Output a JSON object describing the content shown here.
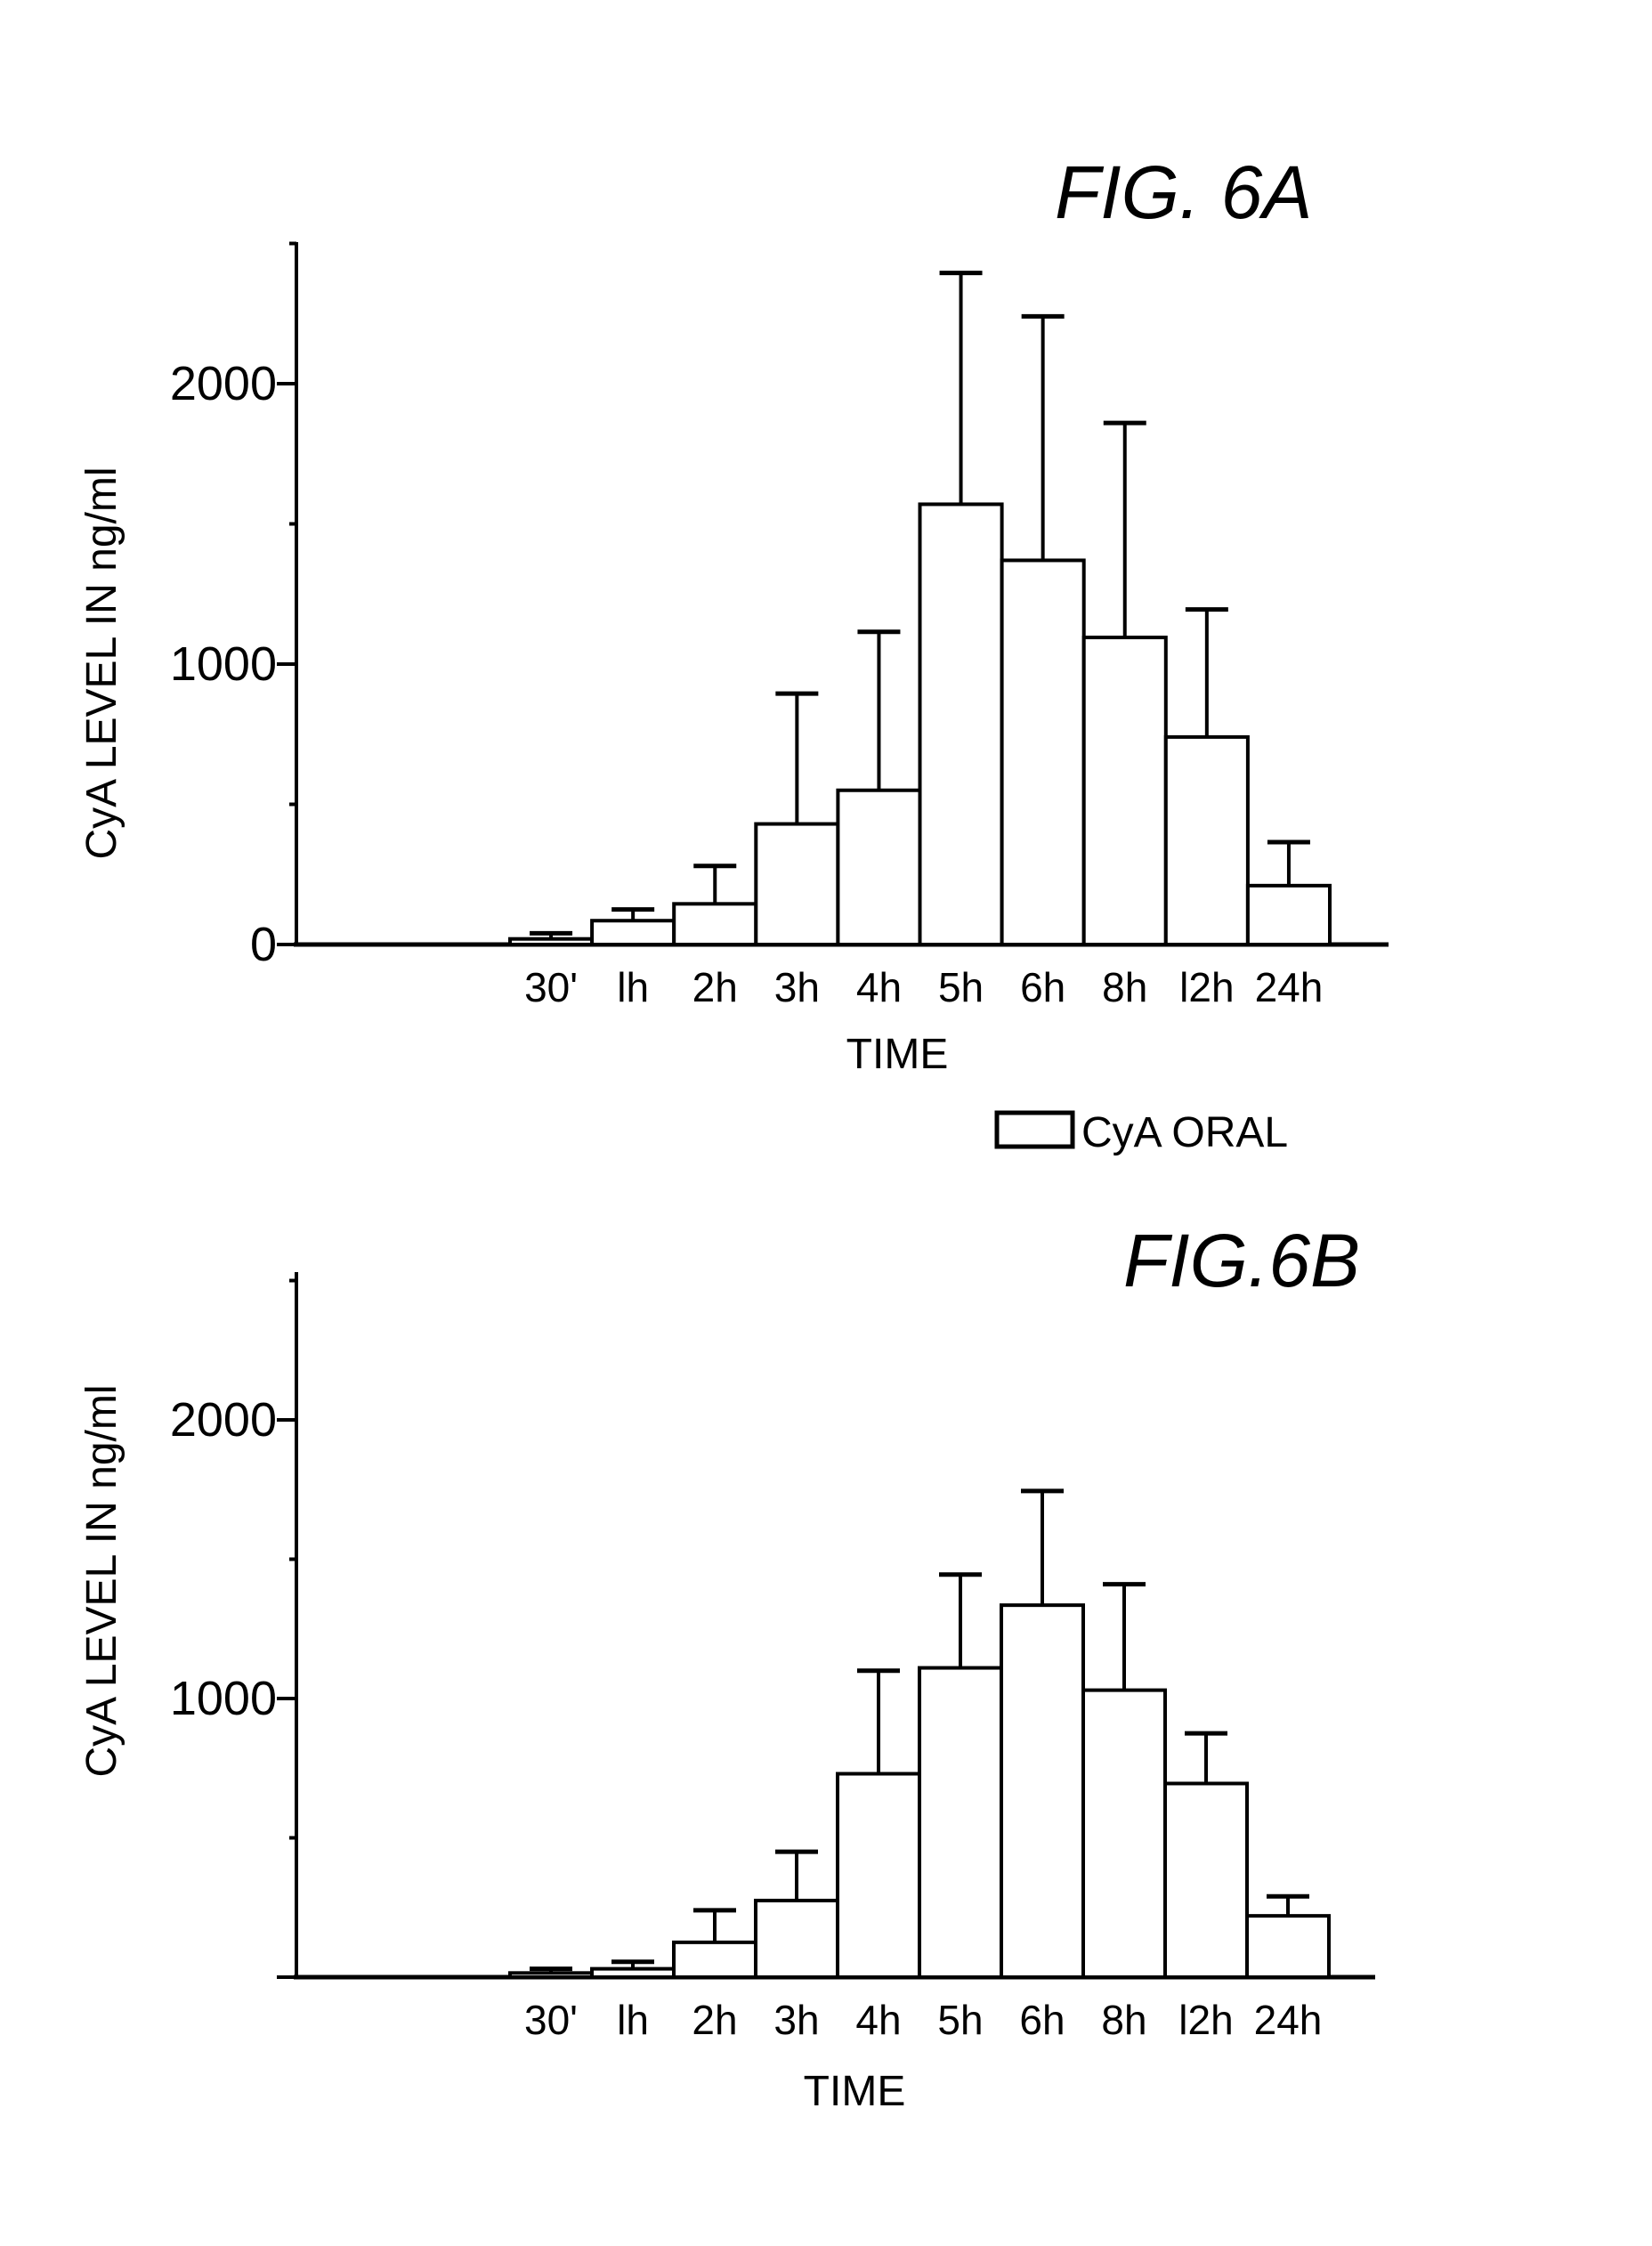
{
  "chart_data": [
    {
      "type": "bar",
      "title": "FIG. 6A",
      "xlabel": "TIME",
      "ylabel": "CyA LEVEL IN ng/ml",
      "ylim": [
        0,
        2500
      ],
      "yticks": [
        "0",
        "1000",
        "2000"
      ],
      "categories": [
        "30'",
        "lh",
        "2h",
        "3h",
        "4h",
        "5h",
        "6h",
        "8h",
        "l2h",
        "24h"
      ],
      "series": [
        {
          "name": "CyA ORAL",
          "values": [
            20,
            85,
            145,
            430,
            550,
            1570,
            1370,
            1095,
            740,
            210
          ],
          "error_upper": [
            40,
            125,
            280,
            895,
            1115,
            2395,
            2240,
            1860,
            1195,
            365
          ]
        }
      ],
      "legend": {
        "label": "CyA ORAL",
        "placement": "bottom-right"
      },
      "grid": false
    },
    {
      "type": "bar",
      "title": "FIG.6B",
      "xlabel": "TIME",
      "ylabel": "CyA LEVEL IN ng/ml",
      "ylim": [
        0,
        2500
      ],
      "yticks": [
        "1000",
        "2000"
      ],
      "categories": [
        "30'",
        "lh",
        "2h",
        "3h",
        "4h",
        "5h",
        "6h",
        "8h",
        "l2h",
        "24h"
      ],
      "series": [
        {
          "values": [
            15,
            30,
            125,
            275,
            730,
            1110,
            1335,
            1030,
            695,
            220
          ],
          "error_upper": [
            30,
            55,
            240,
            450,
            1100,
            1445,
            1745,
            1410,
            875,
            290
          ]
        }
      ],
      "grid": false
    }
  ]
}
